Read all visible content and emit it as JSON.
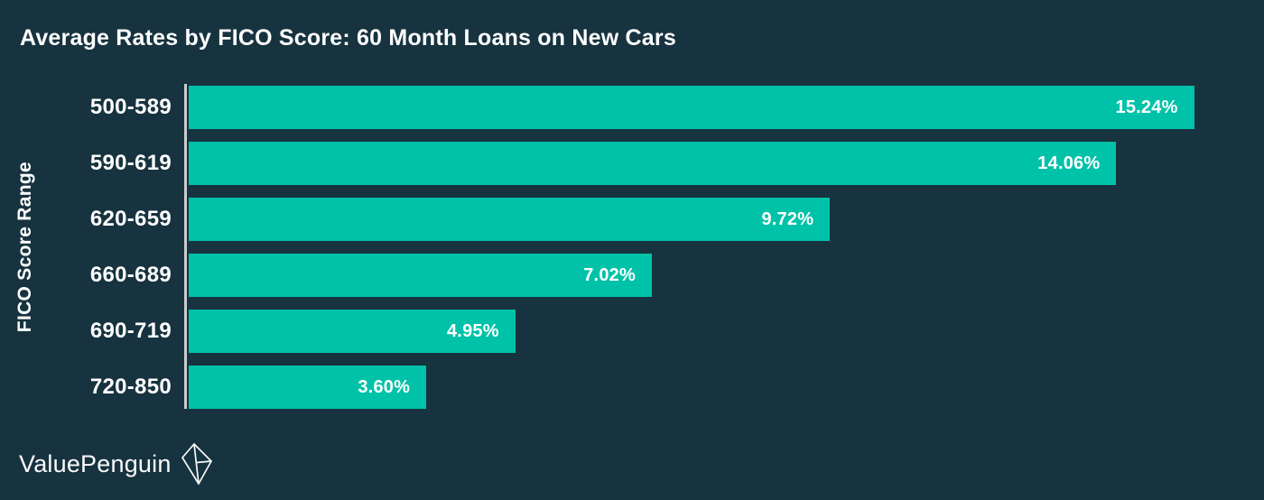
{
  "title": "Average Rates by FICO Score: 60 Month Loans on New Cars",
  "colors": {
    "background": "#16333F",
    "bar": "#00C2A8",
    "axis_line": "#C8CCCF",
    "text": "#FFFFFF"
  },
  "logo": {
    "text": "ValuePenguin",
    "icon": "origami-penguin-logomark"
  },
  "chart_data": {
    "type": "bar",
    "orientation": "horizontal",
    "title": "Average Rates by FICO Score: 60 Month Loans on New Cars",
    "xlabel": "",
    "ylabel": "FICO Score Range",
    "categories": [
      "500-589",
      "590-619",
      "620-659",
      "660-689",
      "690-719",
      "720-850"
    ],
    "values": [
      15.24,
      14.06,
      9.72,
      7.02,
      4.95,
      3.6
    ],
    "value_labels": [
      "15.24%",
      "14.06%",
      "9.72%",
      "7.02%",
      "4.95%",
      "3.60%"
    ],
    "xlim": [
      0,
      16.3
    ],
    "grid": false,
    "legend": "none",
    "value_label_position": "inside-end"
  }
}
